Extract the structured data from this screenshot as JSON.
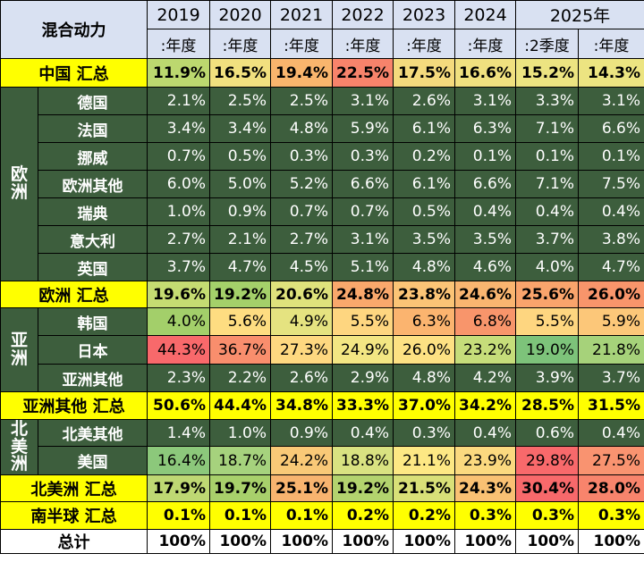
{
  "chart_data": {
    "type": "table",
    "corner_label": "混合动力",
    "columns": [
      {
        "year": "2019",
        "period": ":年度"
      },
      {
        "year": "2020",
        "period": ":年度"
      },
      {
        "year": "2021",
        "period": ":年度"
      },
      {
        "year": "2022",
        "period": ":年度"
      },
      {
        "year": "2023",
        "period": ":年度"
      },
      {
        "year": "2024",
        "period": ":年度"
      },
      {
        "year": "2025年",
        "period": ":2季度"
      },
      {
        "year": "",
        "period": ":年度"
      }
    ],
    "rows": [
      {
        "region": "",
        "label": "中国 汇总",
        "kind": "summary",
        "values": [
          "11.9%",
          "16.5%",
          "19.4%",
          "22.5%",
          "17.5%",
          "16.6%",
          "15.2%",
          "14.3%"
        ],
        "colors": [
          "#bcd86f",
          "#f1e07f",
          "#f9b56d",
          "#f7836b",
          "#f4da7d",
          "#f0e07f",
          "#ece481",
          "#ece481"
        ]
      },
      {
        "region": "欧洲",
        "label": "德国",
        "kind": "row",
        "values": [
          "2.1%",
          "2.5%",
          "2.5%",
          "3.1%",
          "2.6%",
          "3.1%",
          "3.3%",
          "3.1%"
        ],
        "colors": []
      },
      {
        "region": "欧洲",
        "label": "法国",
        "kind": "row",
        "values": [
          "3.4%",
          "3.4%",
          "4.8%",
          "5.9%",
          "6.1%",
          "6.3%",
          "7.1%",
          "6.6%"
        ],
        "colors": []
      },
      {
        "region": "欧洲",
        "label": "挪威",
        "kind": "row",
        "values": [
          "0.7%",
          "0.5%",
          "0.3%",
          "0.3%",
          "0.2%",
          "0.1%",
          "0.1%",
          "0.1%"
        ],
        "colors": []
      },
      {
        "region": "欧洲",
        "label": "欧洲其他",
        "kind": "row",
        "values": [
          "6.0%",
          "5.0%",
          "5.2%",
          "6.6%",
          "6.1%",
          "6.6%",
          "7.1%",
          "7.5%"
        ],
        "colors": []
      },
      {
        "region": "欧洲",
        "label": "瑞典",
        "kind": "row",
        "values": [
          "1.0%",
          "0.9%",
          "0.7%",
          "0.7%",
          "0.5%",
          "0.4%",
          "0.4%",
          "0.4%"
        ],
        "colors": []
      },
      {
        "region": "欧洲",
        "label": "意大利",
        "kind": "row",
        "values": [
          "2.7%",
          "2.1%",
          "2.7%",
          "3.1%",
          "3.5%",
          "3.5%",
          "3.7%",
          "3.8%"
        ],
        "colors": []
      },
      {
        "region": "欧洲",
        "label": "英国",
        "kind": "row",
        "values": [
          "3.7%",
          "4.7%",
          "4.5%",
          "5.1%",
          "4.8%",
          "4.6%",
          "4.0%",
          "4.7%"
        ],
        "colors": []
      },
      {
        "region": "",
        "label": "欧洲 汇总",
        "kind": "summary",
        "values": [
          "19.6%",
          "19.2%",
          "20.6%",
          "24.8%",
          "23.8%",
          "24.6%",
          "25.6%",
          "26.0%"
        ],
        "colors": [
          "#c5dc72",
          "#a4d06a",
          "#dfe27c",
          "#f9a86c",
          "#fbc476",
          "#f9b570",
          "#f9a46c",
          "#f8956b"
        ]
      },
      {
        "region": "亚洲",
        "label": "韩国",
        "kind": "row",
        "values": [
          "4.0%",
          "5.6%",
          "4.9%",
          "5.5%",
          "6.3%",
          "6.8%",
          "5.5%",
          "5.9%"
        ],
        "colors": [
          "#a3cf6a",
          "#fedd81",
          "#e5e380",
          "#fed680",
          "#fbb46f",
          "#f8956b",
          "#fed680",
          "#fcc779"
        ]
      },
      {
        "region": "亚洲",
        "label": "日本",
        "kind": "row",
        "values": [
          "44.3%",
          "36.7%",
          "27.3%",
          "24.9%",
          "26.0%",
          "23.2%",
          "19.0%",
          "21.8%"
        ],
        "colors": [
          "#f8696b",
          "#f98e6d",
          "#fed880",
          "#f3e683",
          "#fde183",
          "#c6dd7a",
          "#7dc37a",
          "#a6d27a"
        ]
      },
      {
        "region": "亚洲",
        "label": "亚洲其他",
        "kind": "row",
        "values": [
          "2.3%",
          "2.2%",
          "2.6%",
          "2.9%",
          "4.8%",
          "4.2%",
          "3.9%",
          "3.7%"
        ],
        "colors": []
      },
      {
        "region": "",
        "label": "亚洲其他 汇总",
        "kind": "summary",
        "values": [
          "50.6%",
          "44.4%",
          "34.8%",
          "33.3%",
          "37.0%",
          "34.2%",
          "28.5%",
          "31.5%"
        ],
        "colors": [
          "#ffff00",
          "#ffff00",
          "#ffff00",
          "#ffff00",
          "#ffff00",
          "#ffff00",
          "#ffff00",
          "#ffff00"
        ]
      },
      {
        "region": "北美洲",
        "label": "北美其他",
        "kind": "row",
        "values": [
          "1.4%",
          "1.0%",
          "0.9%",
          "0.4%",
          "0.3%",
          "0.4%",
          "0.6%",
          "0.4%"
        ],
        "colors": []
      },
      {
        "region": "北美洲",
        "label": "美国",
        "kind": "row",
        "values": [
          "16.4%",
          "18.7%",
          "24.2%",
          "18.8%",
          "21.1%",
          "23.9%",
          "29.8%",
          "27.5%"
        ],
        "colors": [
          "#8cc87b",
          "#a6d27d",
          "#f9c977",
          "#d9e281",
          "#fde884",
          "#fbd97f",
          "#f8696b",
          "#f99370"
        ]
      },
      {
        "region": "",
        "label": "北美洲 汇总",
        "kind": "summary",
        "values": [
          "17.9%",
          "19.7%",
          "25.1%",
          "19.2%",
          "21.5%",
          "24.3%",
          "30.4%",
          "28.0%"
        ],
        "colors": [
          "#bed873",
          "#a8d06b",
          "#f8b46f",
          "#b3d36e",
          "#d9e078",
          "#f9c173",
          "#f8696b",
          "#f8846c"
        ]
      },
      {
        "region": "",
        "label": "南半球 汇总",
        "kind": "summary",
        "values": [
          "0.1%",
          "0.1%",
          "0.1%",
          "0.2%",
          "0.2%",
          "0.3%",
          "0.3%",
          "0.3%"
        ],
        "colors": [
          "#ffff00",
          "#ffff00",
          "#ffff00",
          "#ffff00",
          "#ffff00",
          "#ffff00",
          "#ffff00",
          "#ffff00"
        ]
      },
      {
        "region": "",
        "label": "总计",
        "kind": "total",
        "values": [
          "100%",
          "100%",
          "100%",
          "100%",
          "100%",
          "100%",
          "100%",
          "100%"
        ],
        "colors": []
      }
    ]
  }
}
